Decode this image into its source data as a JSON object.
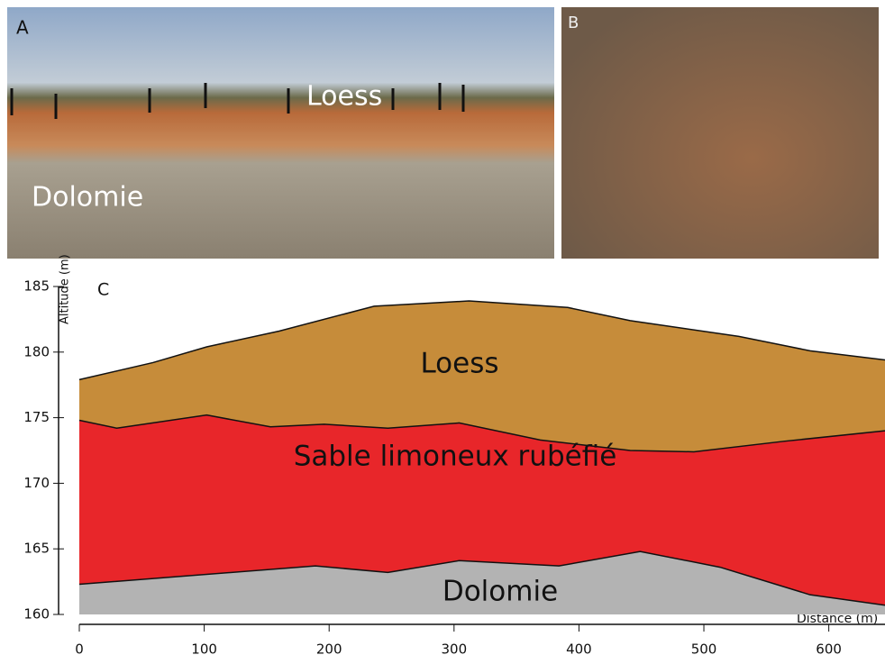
{
  "photos": [
    {
      "label": "A",
      "annotations": [
        "Loess",
        "Dolomie"
      ]
    },
    {
      "label": "B"
    }
  ],
  "chart_data": {
    "type": "area",
    "panel_label": "C",
    "xlabel": "Distance (m)",
    "ylabel": "Altitude (m)",
    "xlim": [
      0,
      645
    ],
    "ylim": [
      160,
      185
    ],
    "xticks": [
      0,
      100,
      200,
      300,
      400,
      500,
      600
    ],
    "yticks": [
      160,
      165,
      170,
      175,
      180,
      185
    ],
    "series": [
      {
        "name": "Loess",
        "color": "#c68c3a",
        "x": [
          0,
          59,
          102,
          160,
          236,
          312,
          391,
          441,
          528,
          585,
          645
        ],
        "values": [
          177.9,
          179.2,
          180.4,
          181.6,
          183.5,
          183.9,
          183.4,
          182.4,
          181.2,
          180.1,
          179.4
        ]
      },
      {
        "name": "Sable limoneux rubéfié",
        "color": "#e8262a",
        "x": [
          0,
          30,
          102,
          153,
          196,
          247,
          304,
          369,
          441,
          492,
          564,
          645
        ],
        "values": [
          174.8,
          174.2,
          175.2,
          174.3,
          174.5,
          174.2,
          174.6,
          173.3,
          172.5,
          172.4,
          173.2,
          174.0
        ]
      },
      {
        "name": "Dolomie",
        "color": "#b3b3b3",
        "x": [
          0,
          81,
          189,
          247,
          304,
          384,
          449,
          513,
          585,
          645
        ],
        "values": [
          162.3,
          162.9,
          163.7,
          163.2,
          164.1,
          163.7,
          164.8,
          163.6,
          161.5,
          160.7
        ]
      }
    ]
  }
}
